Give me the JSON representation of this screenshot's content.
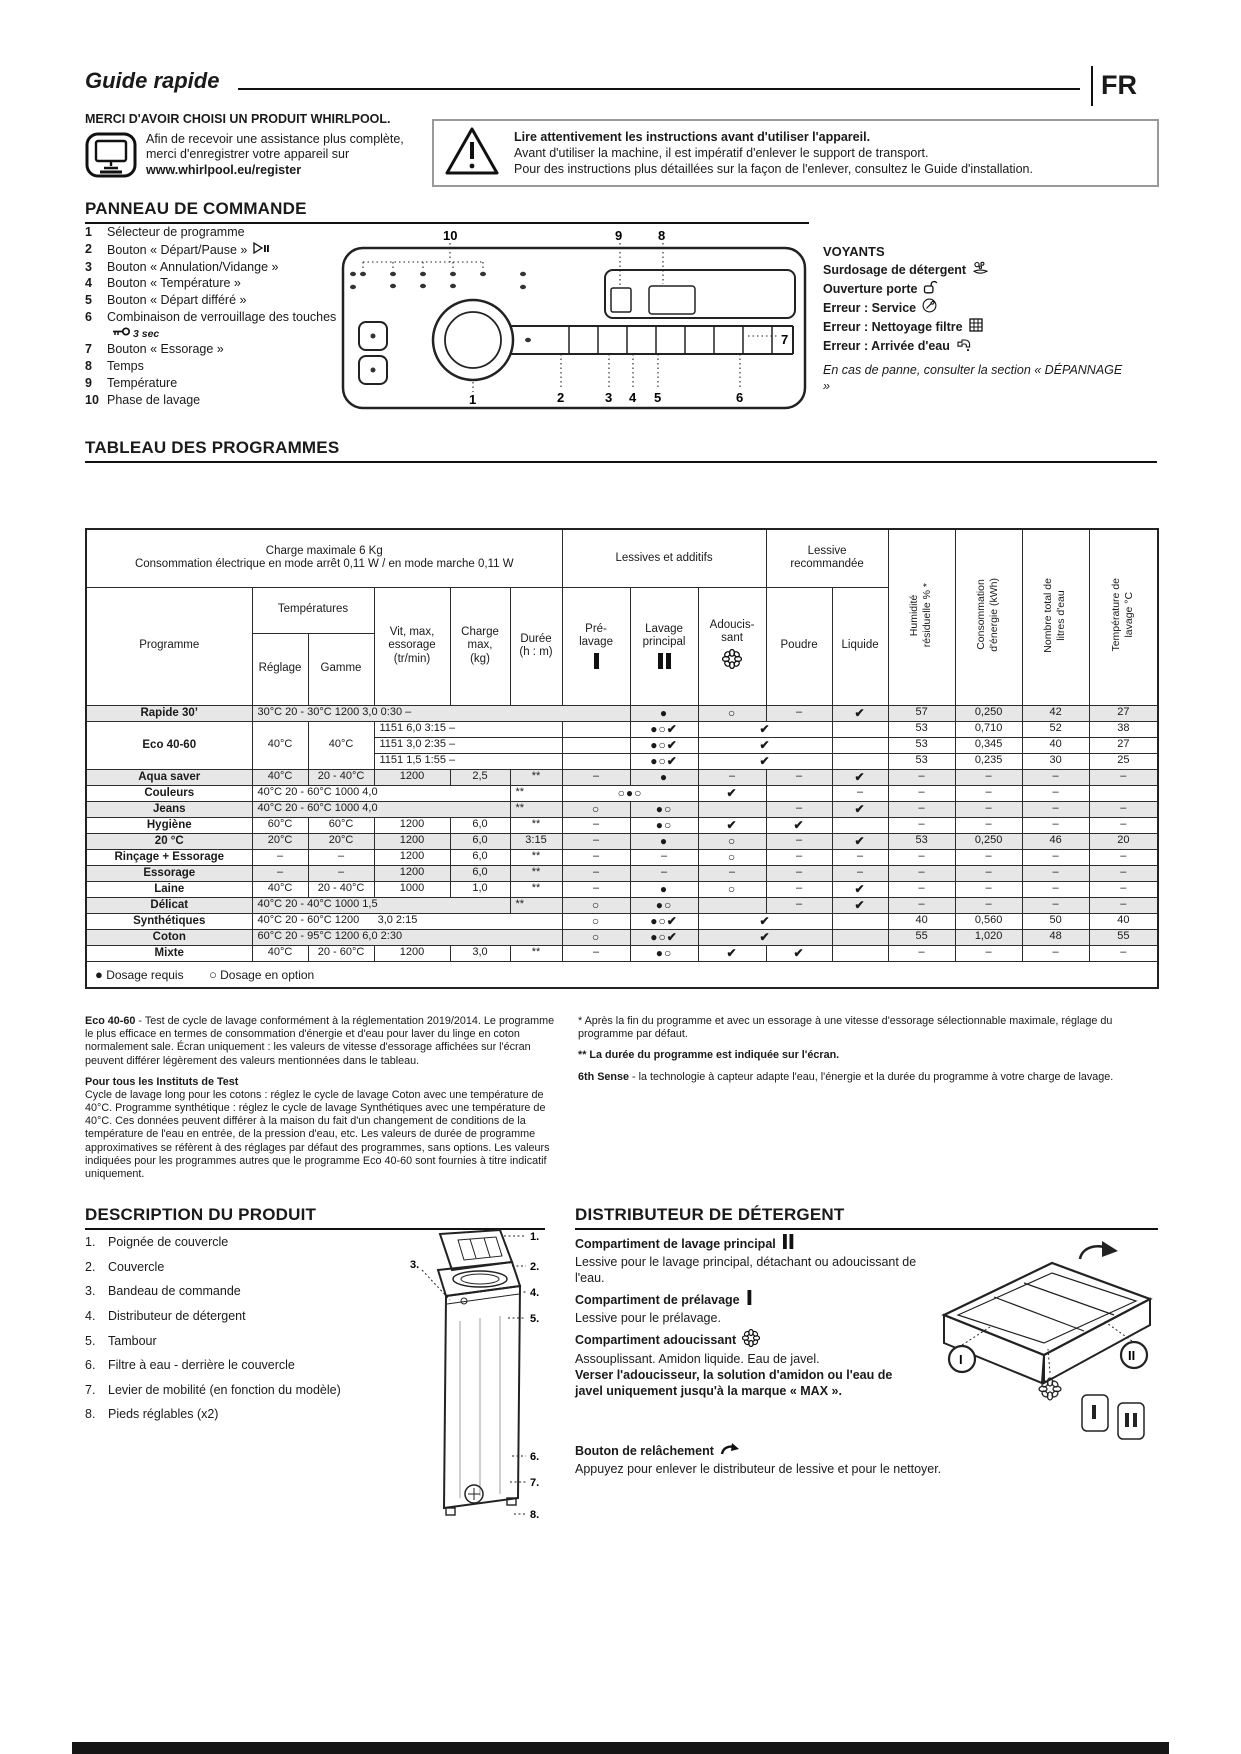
{
  "page": {
    "title": "Guide rapide",
    "lang_badge": "FR"
  },
  "intro": {
    "thanks_title": "MERCI D'AVOIR CHOISI UN PRODUIT WHIRLPOOL.",
    "thanks_line1": "Afin de recevoir une assistance plus complète,",
    "thanks_line2": "merci d'enregistrer votre appareil sur",
    "register_url": "www.whirlpool.eu/register",
    "warning_bold": "Lire attentivement les instructions avant d'utiliser l'appareil.",
    "warning_line2": "Avant d'utiliser la machine, il est impératif d'enlever le support de transport.",
    "warning_line3": "Pour des instructions plus détaillées sur la façon de l'enlever, consultez le Guide d'installation."
  },
  "panel": {
    "title": "PANNEAU DE COMMANDE",
    "items": [
      {
        "num": "1",
        "label": "Sélecteur de programme"
      },
      {
        "num": "2",
        "label": "Bouton « Départ/Pause »",
        "icon": "play-pause-icon"
      },
      {
        "num": "3",
        "label": "Bouton « Annulation/Vidange »"
      },
      {
        "num": "4",
        "label": "Bouton « Température »"
      },
      {
        "num": "5",
        "label": "Bouton « Départ différé »"
      },
      {
        "num": "6",
        "label": "Combinaison de verrouillage des touches",
        "icon": "key-icon",
        "suffix": "3 sec"
      },
      {
        "num": "7",
        "label": "Bouton « Essorage »"
      },
      {
        "num": "8",
        "label": "Temps"
      },
      {
        "num": "9",
        "label": "Température"
      },
      {
        "num": "10",
        "label": "Phase de lavage"
      }
    ],
    "callouts": [
      "10",
      "9",
      "8",
      "7",
      "1",
      "2",
      "3",
      "4",
      "5",
      "6"
    ],
    "voyants": {
      "title": "VOYANTS",
      "items": [
        {
          "label": "Surdosage de détergent",
          "icon": "detergent-overdose-icon"
        },
        {
          "label": "Ouverture porte",
          "icon": "door-open-icon"
        },
        {
          "label": "Erreur : Service",
          "icon": "service-icon"
        },
        {
          "label": "Erreur : Nettoyage filtre",
          "icon": "filter-icon"
        },
        {
          "label": "Erreur : Arrivée d'eau",
          "icon": "water-inlet-icon"
        }
      ],
      "note": "En cas de panne, consulter la section « DÉPANNAGE »"
    }
  },
  "table": {
    "title": "TABLEAU DES PROGRAMMES",
    "top_line1": "Charge maximale 6 Kg",
    "top_line2": "Consommation électrique en mode arrêt 0,11 W / en mode marche 0,11 W",
    "groups": {
      "additives": "Lessives et additifs",
      "recommended": "Lessive\nrecommandée"
    },
    "cols": {
      "programme": "Programme",
      "temps": "Températures",
      "reglage": "Réglage",
      "gamme": "Gamme",
      "vit": "Vit, max,\nessorage\n(tr/min)",
      "charge": "Charge\nmax,\n(kg)",
      "duree": "Durée\n(h : m)",
      "pre": "Pré-\nlavage",
      "lavage": "Lavage\nprincipal",
      "adouc": "Adoucis-\nsant",
      "poudre": "Poudre",
      "liquide": "Liquide",
      "hum": "Humidité\nrésiduelle % *",
      "cons": "Consommation\nd'énergie (kWh)",
      "litres": "Nombre total de\nlitres d'eau",
      "templav": "Température de\nlavage °C"
    },
    "rows": [
      {
        "shaded": true,
        "cells": [
          {
            "t": "Rapide 30’",
            "b": 1
          },
          {
            "t": "30°C 20 - 30°C 1200 3,0 0:30 –",
            "cs": 6,
            "al": "l"
          },
          {
            "t": "●",
            "sym": 1
          },
          {
            "t": "○",
            "sym": 1
          },
          {
            "t": "–"
          },
          {
            "t": "✔",
            "sym": 1
          },
          {
            "t": "57"
          },
          {
            "t": "0,250"
          },
          {
            "t": "42"
          },
          {
            "t": "27"
          }
        ]
      },
      {
        "cells": [
          {
            "t": "Eco 40-60",
            "b": 1,
            "rs": 3
          },
          {
            "t": "40°C",
            "rs": 3
          },
          {
            "t": "40°C",
            "rs": 3
          },
          {
            "t": "1151 6,0 3:15 –",
            "cs": 3,
            "al": "l"
          },
          {
            "t": ""
          },
          {
            "t": "●○✔",
            "sym": 1
          },
          {
            "t": "✔",
            "cs": 2,
            "sym": 1
          },
          {
            "t": ""
          },
          {
            "t": "53"
          },
          {
            "t": "0,710"
          },
          {
            "t": "52"
          },
          {
            "t": "38"
          }
        ]
      },
      {
        "cells": [
          {
            "t": "1151 3,0 2:35 –",
            "cs": 3,
            "al": "l"
          },
          {
            "t": ""
          },
          {
            "t": "●○✔",
            "sym": 1
          },
          {
            "t": "✔",
            "cs": 2,
            "sym": 1
          },
          {
            "t": ""
          },
          {
            "t": "53"
          },
          {
            "t": "0,345"
          },
          {
            "t": "40"
          },
          {
            "t": "27"
          }
        ]
      },
      {
        "cells": [
          {
            "t": "1151 1,5 1:55 –",
            "cs": 3,
            "al": "l"
          },
          {
            "t": ""
          },
          {
            "t": "●○✔",
            "sym": 1
          },
          {
            "t": "✔",
            "cs": 2,
            "sym": 1
          },
          {
            "t": ""
          },
          {
            "t": "53"
          },
          {
            "t": "0,235"
          },
          {
            "t": "30"
          },
          {
            "t": "25"
          }
        ]
      },
      {
        "shaded": true,
        "cells": [
          {
            "t": "Aqua saver",
            "b": 1
          },
          {
            "t": "40°C"
          },
          {
            "t": "20 - 40°C"
          },
          {
            "t": "1200"
          },
          {
            "t": "2,5"
          },
          {
            "t": "**"
          },
          {
            "t": "–"
          },
          {
            "t": "●",
            "sym": 1
          },
          {
            "t": "–"
          },
          {
            "t": "–"
          },
          {
            "t": "✔",
            "sym": 1
          },
          {
            "t": "–"
          },
          {
            "t": "–"
          },
          {
            "t": "–"
          },
          {
            "t": "–"
          }
        ]
      },
      {
        "cells": [
          {
            "t": "Couleurs",
            "b": 1
          },
          {
            "t": "40°C 20 - 60°C 1000 4,0",
            "cs": 4,
            "al": "l"
          },
          {
            "t": "**",
            "al": "l"
          },
          {
            "t": "○●○",
            "cs": 2,
            "sym": 1
          },
          {
            "t": "✔",
            "sym": 1
          },
          {
            "t": ""
          },
          {
            "t": "–"
          },
          {
            "t": "–"
          },
          {
            "t": "–"
          },
          {
            "t": "–"
          },
          {
            "t": ""
          }
        ]
      },
      {
        "shaded": true,
        "cells": [
          {
            "t": "Jeans",
            "b": 1
          },
          {
            "t": "40°C 20 - 60°C 1000 4,0",
            "cs": 4,
            "al": "l"
          },
          {
            "t": "**",
            "al": "l"
          },
          {
            "t": "○",
            "sym": 1
          },
          {
            "t": "●○",
            "sym": 1
          },
          {
            "t": ""
          },
          {
            "t": "–"
          },
          {
            "t": "✔",
            "sym": 1
          },
          {
            "t": "–"
          },
          {
            "t": "–"
          },
          {
            "t": "–"
          },
          {
            "t": "–"
          }
        ]
      },
      {
        "cells": [
          {
            "t": "Hygiène",
            "b": 1
          },
          {
            "t": "60°C"
          },
          {
            "t": "60°C"
          },
          {
            "t": "1200"
          },
          {
            "t": "6,0"
          },
          {
            "t": "**"
          },
          {
            "t": "–"
          },
          {
            "t": "●○",
            "sym": 1
          },
          {
            "t": "✔",
            "sym": 1
          },
          {
            "t": "✔",
            "sym": 1
          },
          {
            "t": ""
          },
          {
            "t": "–"
          },
          {
            "t": "–"
          },
          {
            "t": "–"
          },
          {
            "t": "–"
          }
        ]
      },
      {
        "shaded": true,
        "cells": [
          {
            "t": "20 °C",
            "b": 1
          },
          {
            "t": "20°C"
          },
          {
            "t": "20°C"
          },
          {
            "t": "1200"
          },
          {
            "t": "6,0"
          },
          {
            "t": "3:15"
          },
          {
            "t": "–"
          },
          {
            "t": "●",
            "sym": 1
          },
          {
            "t": "○",
            "sym": 1
          },
          {
            "t": "–"
          },
          {
            "t": "✔",
            "sym": 1
          },
          {
            "t": "53"
          },
          {
            "t": "0,250"
          },
          {
            "t": "46"
          },
          {
            "t": "20"
          }
        ]
      },
      {
        "cells": [
          {
            "t": "Rinçage + Essorage",
            "b": 1
          },
          {
            "t": "–"
          },
          {
            "t": "–"
          },
          {
            "t": "1200"
          },
          {
            "t": "6,0"
          },
          {
            "t": "**"
          },
          {
            "t": "–"
          },
          {
            "t": "–"
          },
          {
            "t": "○",
            "sym": 1
          },
          {
            "t": "–"
          },
          {
            "t": "–"
          },
          {
            "t": "–"
          },
          {
            "t": "–"
          },
          {
            "t": "–"
          },
          {
            "t": "–"
          }
        ]
      },
      {
        "shaded": true,
        "cells": [
          {
            "t": "Essorage",
            "b": 1
          },
          {
            "t": "–"
          },
          {
            "t": "–"
          },
          {
            "t": "1200"
          },
          {
            "t": "6,0"
          },
          {
            "t": "**"
          },
          {
            "t": "–"
          },
          {
            "t": "–"
          },
          {
            "t": "–"
          },
          {
            "t": "–"
          },
          {
            "t": "–"
          },
          {
            "t": "–"
          },
          {
            "t": "–"
          },
          {
            "t": "–"
          },
          {
            "t": "–"
          }
        ]
      },
      {
        "cells": [
          {
            "t": "Laine",
            "b": 1
          },
          {
            "t": "40°C"
          },
          {
            "t": "20 - 40°C"
          },
          {
            "t": "1000"
          },
          {
            "t": "1,0"
          },
          {
            "t": "**"
          },
          {
            "t": "–"
          },
          {
            "t": "●",
            "sym": 1
          },
          {
            "t": "○",
            "sym": 1
          },
          {
            "t": "–"
          },
          {
            "t": "✔",
            "sym": 1
          },
          {
            "t": "–"
          },
          {
            "t": "–"
          },
          {
            "t": "–"
          },
          {
            "t": "–"
          }
        ]
      },
      {
        "shaded": true,
        "cells": [
          {
            "t": "Délicat",
            "b": 1
          },
          {
            "t": "40°C 20 - 40°C 1000 1,5",
            "cs": 4,
            "al": "l"
          },
          {
            "t": "**",
            "al": "l"
          },
          {
            "t": "○",
            "sym": 1
          },
          {
            "t": "●○",
            "sym": 1
          },
          {
            "t": ""
          },
          {
            "t": "–"
          },
          {
            "t": "✔",
            "sym": 1
          },
          {
            "t": "–"
          },
          {
            "t": "–"
          },
          {
            "t": "–"
          },
          {
            "t": "–"
          }
        ]
      },
      {
        "cells": [
          {
            "t": "Synthétiques",
            "b": 1
          },
          {
            "t": "40°C 20 - 60°C 1200      3,0 2:15",
            "cs": 5,
            "al": "l"
          },
          {
            "t": "○",
            "sym": 1
          },
          {
            "t": "●○✔",
            "sym": 1
          },
          {
            "t": "✔",
            "cs": 2,
            "sym": 1
          },
          {
            "t": ""
          },
          {
            "t": "40"
          },
          {
            "t": "0,560"
          },
          {
            "t": "50"
          },
          {
            "t": "40"
          }
        ]
      },
      {
        "shaded": true,
        "cells": [
          {
            "t": "Coton",
            "b": 1
          },
          {
            "t": "60°C 20 - 95°C 1200 6,0 2:30",
            "cs": 5,
            "al": "l"
          },
          {
            "t": "○",
            "sym": 1
          },
          {
            "t": "●○✔",
            "sym": 1
          },
          {
            "t": "✔",
            "cs": 2,
            "sym": 1
          },
          {
            "t": ""
          },
          {
            "t": "55"
          },
          {
            "t": "1,020"
          },
          {
            "t": "48"
          },
          {
            "t": "55"
          }
        ]
      },
      {
        "cells": [
          {
            "t": "Mixte",
            "b": 1
          },
          {
            "t": "40°C"
          },
          {
            "t": "20 - 60°C"
          },
          {
            "t": "1200"
          },
          {
            "t": "3,0"
          },
          {
            "t": "**"
          },
          {
            "t": "–"
          },
          {
            "t": "●○",
            "sym": 1
          },
          {
            "t": "✔",
            "sym": 1
          },
          {
            "t": "✔",
            "sym": 1
          },
          {
            "t": ""
          },
          {
            "t": "–"
          },
          {
            "t": "–"
          },
          {
            "t": "–"
          },
          {
            "t": "–"
          }
        ]
      }
    ],
    "legend": {
      "dot_filled": "●",
      "dot_filled_label": "Dosage requis",
      "dot_open": "○",
      "dot_open_label": "Dosage en option"
    }
  },
  "footnotes": {
    "left1_bold": "Eco 40-60",
    "left1_text": " - Test de cycle de lavage conformément à la réglementation 2019/2014. Le programme le plus efficace en termes de consommation d'énergie et d'eau pour laver du linge en coton normalement sale. Écran uniquement : les valeurs de vitesse d'essorage affichées sur l'écran peuvent différer légèrement des valeurs mentionnées dans le tableau.",
    "left2_head": "Pour tous les Instituts de Test",
    "left2_text": "Cycle de lavage long pour les cotons : réglez le cycle de lavage Coton avec une température de 40°C. Programme synthétique : réglez le cycle de lavage Synthétiques avec une température de 40°C. Ces données peuvent différer à la maison du fait d'un changement de conditions de la température de l'eau en entrée, de la pression d'eau, etc. Les valeurs de durée de programme approximatives se réfèrent à des réglages par défaut des programmes, sans options. Les valeurs indiquées pour les programmes autres que le programme Eco 40-60 sont fournies à titre indicatif uniquement.",
    "right1": "* Après la fin du programme et avec un essorage à une vitesse d'essorage sélectionnable maximale, réglage du programme par défaut.",
    "right2": "** La durée du programme est indiquée sur l'écran.",
    "right3_bold": "6th Sense",
    "right3_text": " - la technologie à capteur adapte l'eau, l'énergie et la durée du programme à votre charge de lavage."
  },
  "description": {
    "title": "DESCRIPTION DU PRODUIT",
    "items": [
      {
        "num": "1.",
        "label": "Poignée  de couvercle"
      },
      {
        "num": "2.",
        "label": "Couvercle"
      },
      {
        "num": "3.",
        "label": "Bandeau de commande"
      },
      {
        "num": "4.",
        "label": "Distributeur de détergent"
      },
      {
        "num": "5.",
        "label": "Tambour"
      },
      {
        "num": "6.",
        "label": "Filtre à eau - derrière le couvercle"
      },
      {
        "num": "7.",
        "label": "Levier de mobilité (en fonction du modèle)"
      },
      {
        "num": "8.",
        "label": "Pieds réglables (x2)"
      }
    ],
    "callouts": [
      "1.",
      "2.",
      "3.",
      "4.",
      "5.",
      "6.",
      "7.",
      "8."
    ]
  },
  "dispenser": {
    "title": "DISTRIBUTEUR DE DÉTERGENT",
    "blocks": [
      {
        "head": "Compartiment de lavage principal",
        "icon": "mainwash-bars-icon",
        "body": "Lessive pour le lavage principal, détachant ou adoucissant de l'eau."
      },
      {
        "head": "Compartiment de prélavage",
        "icon": "prewash-bar-icon",
        "body": "Lessive pour le prélavage."
      },
      {
        "head": "Compartiment adoucissant",
        "icon": "softener-flower-icon",
        "body": "Assouplissant. Amidon liquide. Eau de javel.",
        "body_bold": "Verser l'adoucisseur, la solution d'amidon ou l'eau de javel uniquement jusqu'à la marque « MAX »."
      }
    ],
    "release": {
      "head": "Bouton de relâchement",
      "body": "Appuyez pour enlever le distributeur de lessive et pour le nettoyer."
    },
    "badges": [
      "I",
      "II"
    ]
  }
}
